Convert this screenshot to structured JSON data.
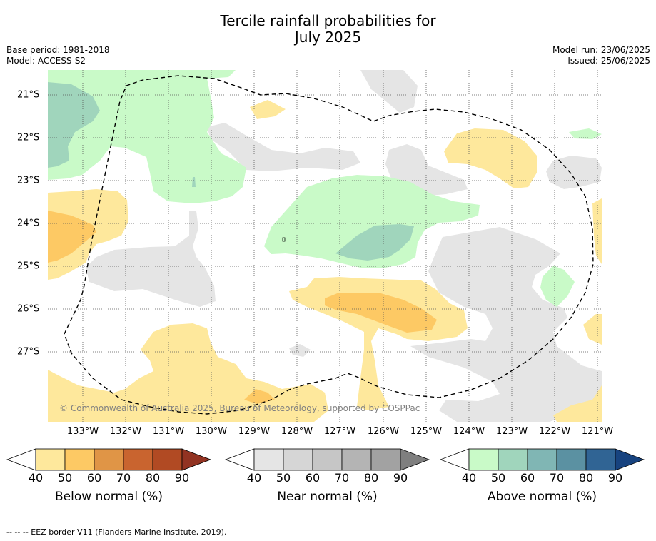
{
  "title_line1": "Tercile rainfall probabilities for",
  "title_line2": "July 2025",
  "meta": {
    "base_period": "Base period: 1981-2018",
    "model": "Model: ACCESS-S2",
    "model_run": "Model run: 23/06/2025",
    "issued": "Issued: 25/06/2025"
  },
  "map": {
    "x_ticks": [
      "133°W",
      "132°W",
      "131°W",
      "130°W",
      "129°W",
      "128°W",
      "127°W",
      "126°W",
      "125°W",
      "124°W",
      "123°W",
      "122°W",
      "121°W"
    ],
    "y_ticks": [
      "21°S",
      "22°S",
      "23°S",
      "24°S",
      "25°S",
      "26°S",
      "27°S"
    ],
    "copyright": "© Commonwealth of Australia 2025, Bureau of Meteorology, supported by COSPPac",
    "colors": {
      "below_40": "#fee89c",
      "below_50": "#fdc964",
      "near_40": "#e5e5e5",
      "above_40": "#c9fac8",
      "above_50": "#a0d5bc"
    }
  },
  "colorbars": [
    {
      "title": "Below normal (%)",
      "ticks": [
        "40",
        "50",
        "60",
        "70",
        "80",
        "90"
      ],
      "colors": [
        "#fee89c",
        "#fdc964",
        "#e09546",
        "#c9642f",
        "#b14a23",
        "#923322"
      ]
    },
    {
      "title": "Near normal (%)",
      "ticks": [
        "40",
        "50",
        "60",
        "70",
        "80",
        "90"
      ],
      "colors": [
        "#e5e5e5",
        "#d6d6d6",
        "#c6c6c6",
        "#b4b4b4",
        "#a2a2a2",
        "#7f7f7f"
      ]
    },
    {
      "title": "Above normal (%)",
      "ticks": [
        "40",
        "50",
        "60",
        "70",
        "80",
        "90"
      ],
      "colors": [
        "#c9fac8",
        "#a0d5bc",
        "#80b6b4",
        "#5b91a2",
        "#306494",
        "#17437f"
      ]
    }
  ],
  "footnote": "--  --  -- EEZ border V11 (Flanders Marine Institute, 2019)."
}
